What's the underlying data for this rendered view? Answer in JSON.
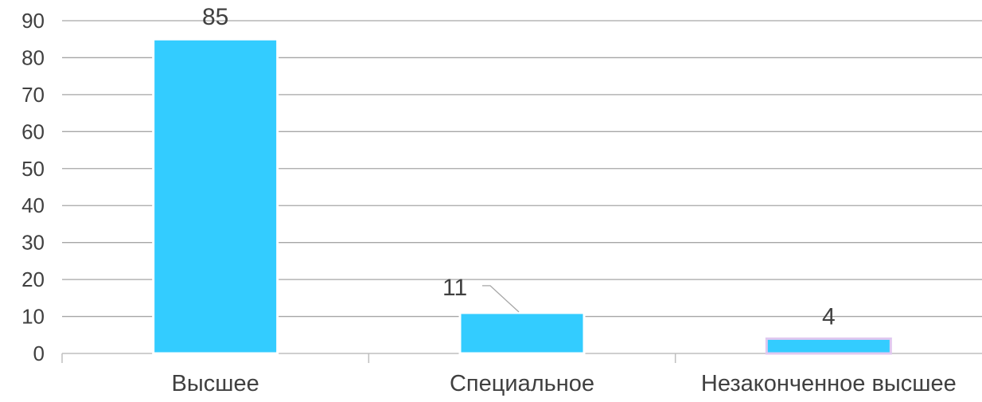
{
  "chart_data": {
    "type": "bar",
    "title": "",
    "xlabel": "",
    "ylabel": "",
    "categories": [
      "Высшее",
      "Специальное",
      "Незаконченное высшее"
    ],
    "values": [
      85,
      11,
      4
    ],
    "data_labels": [
      "85",
      "11",
      "4"
    ],
    "ylim": [
      0,
      90
    ],
    "yticks": [
      "0",
      "10",
      "20",
      "30",
      "40",
      "50",
      "60",
      "70",
      "80",
      "90"
    ],
    "grid": true,
    "legend": "none",
    "bar_color": "#33ccff",
    "bar_edge_color": "#ffffff",
    "highlight_edge_color": "#e0c8f0",
    "grid_color": "#a6a6a6",
    "axis_color": "#bfbfbf",
    "text_color": "#404040",
    "leader_line_color": "#a6a6a6"
  }
}
